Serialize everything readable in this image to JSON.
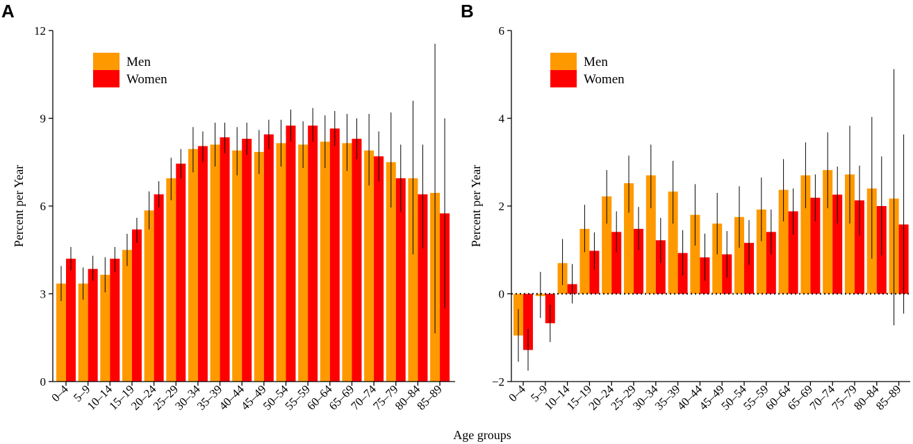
{
  "figure": {
    "xlabel_shared": "Age groups",
    "colors": {
      "men": "#FF9900",
      "women": "#FF0000"
    }
  },
  "chart_data": [
    {
      "panel": "A",
      "type": "bar",
      "title": "",
      "ylabel": "Percent per Year",
      "ylim": [
        0,
        12
      ],
      "yticks": [
        0,
        3,
        6,
        9,
        12
      ],
      "legend": [
        "Men",
        "Women"
      ],
      "legend_position": "top-left",
      "categories": [
        "0–4",
        "5–9",
        "10–14",
        "15–19",
        "20–24",
        "25–29",
        "30–34",
        "35–39",
        "40–44",
        "45–49",
        "50–54",
        "55–59",
        "60–64",
        "65–69",
        "70–74",
        "75–79",
        "80–84",
        "85–89"
      ],
      "series": [
        {
          "name": "Men",
          "values": [
            3.35,
            3.35,
            3.65,
            4.5,
            5.85,
            6.95,
            7.95,
            8.1,
            7.9,
            7.85,
            8.15,
            8.1,
            8.2,
            8.15,
            7.9,
            7.5,
            6.95,
            6.45
          ],
          "err_low": [
            2.75,
            2.8,
            3.05,
            3.95,
            5.2,
            6.2,
            7.15,
            7.35,
            7.05,
            7.1,
            7.35,
            7.3,
            7.3,
            7.2,
            6.7,
            5.95,
            4.35,
            1.65
          ],
          "err_high": [
            3.95,
            3.9,
            4.25,
            5.05,
            6.5,
            7.65,
            8.7,
            8.85,
            8.7,
            8.6,
            8.95,
            8.9,
            9.1,
            9.15,
            9.15,
            9.2,
            9.6,
            11.55
          ]
        },
        {
          "name": "Women",
          "values": [
            4.2,
            3.85,
            4.2,
            5.2,
            6.4,
            7.45,
            8.05,
            8.35,
            8.3,
            8.45,
            8.75,
            8.75,
            8.65,
            8.3,
            7.7,
            6.95,
            6.4,
            5.75
          ],
          "err_low": [
            3.8,
            3.45,
            3.75,
            4.75,
            5.95,
            6.95,
            7.5,
            7.8,
            7.75,
            7.95,
            8.2,
            8.2,
            8.05,
            7.6,
            6.85,
            5.8,
            4.55,
            2.5
          ],
          "err_high": [
            4.6,
            4.3,
            4.6,
            5.6,
            6.85,
            7.95,
            8.55,
            8.85,
            8.85,
            8.95,
            9.3,
            9.35,
            9.25,
            9.0,
            8.55,
            8.1,
            8.1,
            9.0
          ]
        }
      ]
    },
    {
      "panel": "B",
      "type": "bar",
      "title": "",
      "ylabel": "Percent per Year",
      "ylim": [
        -2,
        6
      ],
      "yticks": [
        -2,
        0,
        2,
        4,
        6
      ],
      "reference_line": 0,
      "legend": [
        "Men",
        "Women"
      ],
      "legend_position": "top-left",
      "categories": [
        "0–4",
        "5–9",
        "10–14",
        "15–19",
        "20–24",
        "25–29",
        "30–34",
        "35–39",
        "40–44",
        "45–49",
        "50–54",
        "55–59",
        "60–64",
        "65–69",
        "70–74",
        "75–79",
        "80–84",
        "85–89"
      ],
      "series": [
        {
          "name": "Men",
          "values": [
            -0.95,
            -0.05,
            0.7,
            1.48,
            2.22,
            2.52,
            2.7,
            2.33,
            1.8,
            1.6,
            1.75,
            1.92,
            2.37,
            2.7,
            2.82,
            2.72,
            2.4,
            2.17
          ],
          "err_low": [
            -1.55,
            -0.55,
            0.2,
            0.95,
            1.6,
            1.85,
            1.95,
            1.6,
            1.1,
            0.9,
            1.05,
            1.2,
            1.65,
            1.95,
            1.95,
            1.6,
            0.8,
            -0.72
          ],
          "err_high": [
            -0.35,
            0.5,
            1.25,
            2.03,
            2.82,
            3.15,
            3.4,
            3.03,
            2.5,
            2.3,
            2.45,
            2.65,
            3.07,
            3.45,
            3.68,
            3.83,
            4.03,
            5.12
          ]
        },
        {
          "name": "Women",
          "values": [
            -1.28,
            -0.67,
            0.22,
            0.98,
            1.41,
            1.48,
            1.22,
            0.93,
            0.83,
            0.9,
            1.16,
            1.41,
            1.88,
            2.19,
            2.26,
            2.13,
            2.0,
            1.58
          ],
          "err_low": [
            -1.75,
            -1.1,
            -0.22,
            0.55,
            0.95,
            1.0,
            0.7,
            0.42,
            0.3,
            0.37,
            0.65,
            0.9,
            1.35,
            1.65,
            1.6,
            1.33,
            0.87,
            -0.45
          ],
          "err_high": [
            -0.8,
            -0.25,
            0.68,
            1.4,
            1.88,
            1.98,
            1.73,
            1.45,
            1.37,
            1.43,
            1.68,
            1.92,
            2.4,
            2.72,
            2.9,
            2.92,
            3.13,
            3.63
          ]
        }
      ]
    }
  ]
}
